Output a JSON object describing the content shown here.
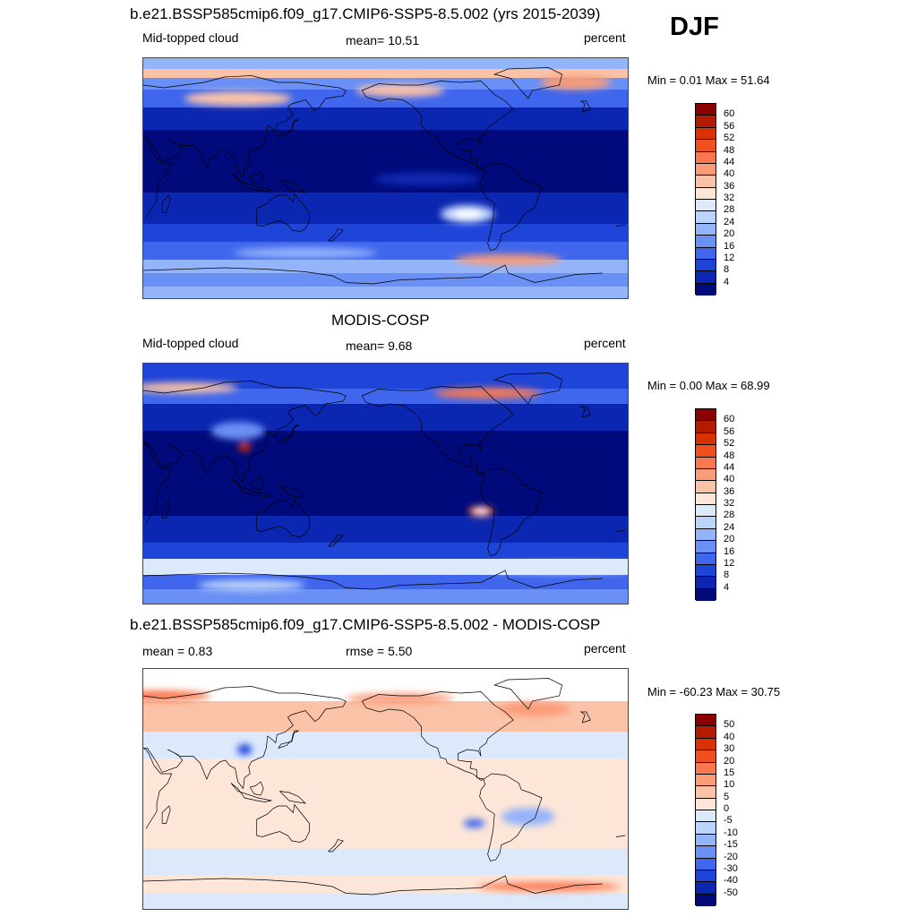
{
  "season": "DJF",
  "panels": [
    {
      "title": "b.e21.BSSP585cmip6.f09_g17.CMIP6-SSP5-8.5.002 (yrs 2015-2039)",
      "left_label": "Mid-topped cloud",
      "center_label": "mean=  10.51",
      "right_label": "percent",
      "minmax": "Min =   0.01 Max =  51.64",
      "field": "model"
    },
    {
      "title": "MODIS-COSP",
      "left_label": "Mid-topped cloud",
      "center_label": "mean=   9.68",
      "right_label": "percent",
      "minmax": "Min =   0.00 Max =  68.99",
      "field": "obs"
    },
    {
      "title": "b.e21.BSSP585cmip6.f09_g17.CMIP6-SSP5-8.5.002 - MODIS-COSP",
      "left_label": "mean =   0.83",
      "center_label": "rmse =   5.50",
      "right_label": "percent",
      "minmax": "Min = -60.23 Max =  30.75",
      "field": "diff"
    }
  ],
  "colorbars": {
    "absolute": {
      "labels": [
        "60",
        "56",
        "52",
        "48",
        "44",
        "40",
        "36",
        "32",
        "28",
        "24",
        "20",
        "16",
        "12",
        "8",
        "4"
      ],
      "colors": [
        "#8b0000",
        "#b31c00",
        "#d93200",
        "#f0501e",
        "#fa7850",
        "#fa9c78",
        "#fac3a8",
        "#fde6d8",
        "#dce9fb",
        "#bcd3fb",
        "#94b4fa",
        "#6a8ff5",
        "#3f66ec",
        "#1f44d8",
        "#0b26b0",
        "#000a7a"
      ]
    },
    "difference": {
      "labels": [
        "50",
        "40",
        "30",
        "20",
        "15",
        "10",
        "5",
        "0",
        "-5",
        "-10",
        "-15",
        "-20",
        "-30",
        "-40",
        "-50"
      ],
      "colors": [
        "#8b0000",
        "#b31c00",
        "#d93200",
        "#f0501e",
        "#fa7850",
        "#fa9c78",
        "#fac3a8",
        "#fde6d8",
        "#dce9fb",
        "#bcd3fb",
        "#94b4fa",
        "#6a8ff5",
        "#3f66ec",
        "#1f44d8",
        "#0b26b0",
        "#000a7a"
      ]
    }
  }
}
